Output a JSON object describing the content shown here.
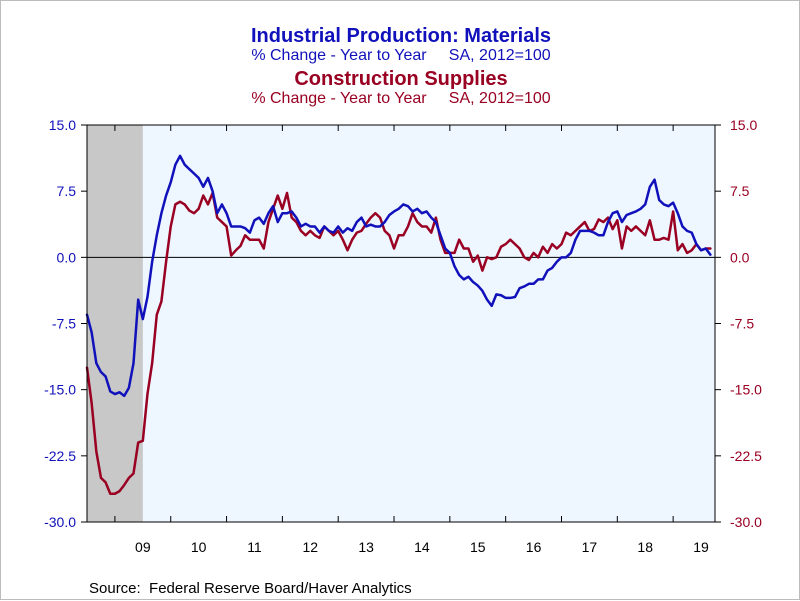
{
  "chart_data": {
    "type": "line",
    "titles": [
      {
        "text": "Industrial Production: Materials",
        "color": "#1111bb"
      },
      {
        "text": "% Change - Year to Year     SA, 2012=100",
        "color": "#1111bb"
      },
      {
        "text": "Construction Supplies",
        "color": "#990022"
      },
      {
        "text": "% Change - Year to Year     SA, 2012=100",
        "color": "#990022"
      }
    ],
    "source": "Source:  Federal Reserve Board/Haver Analytics",
    "x_range": [
      2008.5,
      2019.75
    ],
    "x_ticks": [
      {
        "label": "09",
        "value": 2009.5
      },
      {
        "label": "10",
        "value": 2010.5
      },
      {
        "label": "11",
        "value": 2011.5
      },
      {
        "label": "12",
        "value": 2012.5
      },
      {
        "label": "13",
        "value": 2013.5
      },
      {
        "label": "14",
        "value": 2014.5
      },
      {
        "label": "15",
        "value": 2015.5
      },
      {
        "label": "16",
        "value": 2016.5
      },
      {
        "label": "17",
        "value": 2017.5
      },
      {
        "label": "18",
        "value": 2018.5
      },
      {
        "label": "19",
        "value": 2019.5
      }
    ],
    "year_boundaries": [
      2009,
      2010,
      2011,
      2012,
      2013,
      2014,
      2015,
      2016,
      2017,
      2018,
      2019
    ],
    "recession_shading": [
      {
        "start": 2008.5,
        "end": 2009.5,
        "color": "#c8c8c8"
      }
    ],
    "y_range": [
      -30,
      15
    ],
    "y_ticks_left": [
      "15.0",
      "7.5",
      "0.0",
      "-7.5",
      "-15.0",
      "-22.5",
      "-30.0"
    ],
    "y_ticks_right": [
      "15.0",
      "7.5",
      "0.0",
      "-7.5",
      "-15.0",
      "-22.5",
      "-30.0"
    ],
    "y_tick_values": [
      15,
      7.5,
      0,
      -7.5,
      -15,
      -22.5,
      -30
    ],
    "zero_line": true,
    "grid": false,
    "plot_background": "#eef6ff",
    "left_axis_color": "#1111bb",
    "right_axis_color": "#990022",
    "series": [
      {
        "name": "Industrial Production: Materials",
        "color": "#1111bb",
        "points": [
          [
            2008.5,
            -6.5
          ],
          [
            2008.583,
            -8.5
          ],
          [
            2008.667,
            -12.0
          ],
          [
            2008.75,
            -13.0
          ],
          [
            2008.833,
            -13.5
          ],
          [
            2008.917,
            -15.2
          ],
          [
            2009.0,
            -15.5
          ],
          [
            2009.083,
            -15.3
          ],
          [
            2009.167,
            -15.7
          ],
          [
            2009.25,
            -14.8
          ],
          [
            2009.333,
            -12.0
          ],
          [
            2009.417,
            -4.8
          ],
          [
            2009.5,
            -7.0
          ],
          [
            2009.583,
            -4.5
          ],
          [
            2009.667,
            -0.5
          ],
          [
            2009.75,
            2.5
          ],
          [
            2009.833,
            5.0
          ],
          [
            2009.917,
            7.0
          ],
          [
            2010.0,
            8.5
          ],
          [
            2010.083,
            10.5
          ],
          [
            2010.167,
            11.5
          ],
          [
            2010.25,
            10.5
          ],
          [
            2010.333,
            10.0
          ],
          [
            2010.417,
            9.5
          ],
          [
            2010.5,
            9.0
          ],
          [
            2010.583,
            8.0
          ],
          [
            2010.667,
            9.0
          ],
          [
            2010.75,
            7.5
          ],
          [
            2010.833,
            5.0
          ],
          [
            2010.917,
            6.0
          ],
          [
            2011.0,
            5.0
          ],
          [
            2011.083,
            3.5
          ],
          [
            2011.167,
            3.5
          ],
          [
            2011.25,
            3.5
          ],
          [
            2011.333,
            3.3
          ],
          [
            2011.417,
            2.8
          ],
          [
            2011.5,
            4.2
          ],
          [
            2011.583,
            4.5
          ],
          [
            2011.667,
            3.8
          ],
          [
            2011.75,
            5.0
          ],
          [
            2011.833,
            5.8
          ],
          [
            2011.917,
            4.0
          ],
          [
            2012.0,
            5.0
          ],
          [
            2012.083,
            5.0
          ],
          [
            2012.167,
            5.2
          ],
          [
            2012.25,
            4.5
          ],
          [
            2012.333,
            3.5
          ],
          [
            2012.417,
            3.8
          ],
          [
            2012.5,
            3.5
          ],
          [
            2012.583,
            3.5
          ],
          [
            2012.667,
            2.8
          ],
          [
            2012.75,
            3.5
          ],
          [
            2012.833,
            3.0
          ],
          [
            2012.917,
            2.8
          ],
          [
            2013.0,
            3.5
          ],
          [
            2013.083,
            2.8
          ],
          [
            2013.167,
            3.3
          ],
          [
            2013.25,
            3.0
          ],
          [
            2013.333,
            4.0
          ],
          [
            2013.417,
            4.5
          ],
          [
            2013.5,
            3.5
          ],
          [
            2013.583,
            3.7
          ],
          [
            2013.667,
            3.5
          ],
          [
            2013.75,
            3.5
          ],
          [
            2013.833,
            4.0
          ],
          [
            2013.917,
            4.8
          ],
          [
            2014.0,
            5.2
          ],
          [
            2014.083,
            5.5
          ],
          [
            2014.167,
            6.0
          ],
          [
            2014.25,
            5.8
          ],
          [
            2014.333,
            5.2
          ],
          [
            2014.417,
            5.5
          ],
          [
            2014.5,
            5.0
          ],
          [
            2014.583,
            5.2
          ],
          [
            2014.667,
            4.5
          ],
          [
            2014.75,
            4.0
          ],
          [
            2014.833,
            2.5
          ],
          [
            2014.917,
            1.0
          ],
          [
            2015.0,
            0.5
          ],
          [
            2015.083,
            -1.0
          ],
          [
            2015.167,
            -2.0
          ],
          [
            2015.25,
            -2.5
          ],
          [
            2015.333,
            -2.2
          ],
          [
            2015.417,
            -2.8
          ],
          [
            2015.5,
            -3.2
          ],
          [
            2015.583,
            -3.8
          ],
          [
            2015.667,
            -4.8
          ],
          [
            2015.75,
            -5.5
          ],
          [
            2015.833,
            -4.2
          ],
          [
            2015.917,
            -4.3
          ],
          [
            2016.0,
            -4.6
          ],
          [
            2016.083,
            -4.6
          ],
          [
            2016.167,
            -4.5
          ],
          [
            2016.25,
            -3.5
          ],
          [
            2016.333,
            -3.3
          ],
          [
            2016.417,
            -3.0
          ],
          [
            2016.5,
            -3.0
          ],
          [
            2016.583,
            -2.5
          ],
          [
            2016.667,
            -2.5
          ],
          [
            2016.75,
            -1.5
          ],
          [
            2016.833,
            -1.2
          ],
          [
            2016.917,
            -0.5
          ],
          [
            2017.0,
            0.0
          ],
          [
            2017.083,
            0.0
          ],
          [
            2017.167,
            0.5
          ],
          [
            2017.25,
            2.0
          ],
          [
            2017.333,
            3.0
          ],
          [
            2017.417,
            3.0
          ],
          [
            2017.5,
            3.0
          ],
          [
            2017.583,
            2.8
          ],
          [
            2017.667,
            2.5
          ],
          [
            2017.75,
            2.5
          ],
          [
            2017.833,
            4.0
          ],
          [
            2017.917,
            5.0
          ],
          [
            2018.0,
            5.2
          ],
          [
            2018.083,
            4.0
          ],
          [
            2018.167,
            4.8
          ],
          [
            2018.25,
            5.0
          ],
          [
            2018.333,
            5.2
          ],
          [
            2018.417,
            5.5
          ],
          [
            2018.5,
            6.0
          ],
          [
            2018.583,
            8.0
          ],
          [
            2018.667,
            8.8
          ],
          [
            2018.75,
            6.5
          ],
          [
            2018.833,
            6.0
          ],
          [
            2018.917,
            5.8
          ],
          [
            2019.0,
            6.2
          ],
          [
            2019.083,
            5.0
          ],
          [
            2019.167,
            3.5
          ],
          [
            2019.25,
            3.0
          ],
          [
            2019.333,
            2.8
          ],
          [
            2019.417,
            1.5
          ],
          [
            2019.5,
            0.8
          ],
          [
            2019.583,
            1.0
          ],
          [
            2019.667,
            0.3
          ]
        ]
      },
      {
        "name": "Construction Supplies",
        "color": "#990022",
        "points": [
          [
            2008.5,
            -12.5
          ],
          [
            2008.583,
            -16.5
          ],
          [
            2008.667,
            -22.0
          ],
          [
            2008.75,
            -25.0
          ],
          [
            2008.833,
            -25.5
          ],
          [
            2008.917,
            -26.8
          ],
          [
            2009.0,
            -26.8
          ],
          [
            2009.083,
            -26.5
          ],
          [
            2009.167,
            -25.8
          ],
          [
            2009.25,
            -25.0
          ],
          [
            2009.333,
            -24.5
          ],
          [
            2009.417,
            -21.0
          ],
          [
            2009.5,
            -20.8
          ],
          [
            2009.583,
            -15.5
          ],
          [
            2009.667,
            -12.0
          ],
          [
            2009.75,
            -6.5
          ],
          [
            2009.833,
            -5.0
          ],
          [
            2009.917,
            -0.5
          ],
          [
            2010.0,
            3.5
          ],
          [
            2010.083,
            6.0
          ],
          [
            2010.167,
            6.3
          ],
          [
            2010.25,
            6.0
          ],
          [
            2010.333,
            5.3
          ],
          [
            2010.417,
            5.0
          ],
          [
            2010.5,
            5.5
          ],
          [
            2010.583,
            7.0
          ],
          [
            2010.667,
            6.0
          ],
          [
            2010.75,
            7.3
          ],
          [
            2010.833,
            4.5
          ],
          [
            2010.917,
            4.0
          ],
          [
            2011.0,
            3.5
          ],
          [
            2011.083,
            0.2
          ],
          [
            2011.167,
            0.8
          ],
          [
            2011.25,
            1.3
          ],
          [
            2011.333,
            2.5
          ],
          [
            2011.417,
            2.0
          ],
          [
            2011.5,
            2.0
          ],
          [
            2011.583,
            2.0
          ],
          [
            2011.667,
            1.0
          ],
          [
            2011.75,
            4.0
          ],
          [
            2011.833,
            5.5
          ],
          [
            2011.917,
            7.0
          ],
          [
            2012.0,
            5.5
          ],
          [
            2012.083,
            7.3
          ],
          [
            2012.167,
            4.5
          ],
          [
            2012.25,
            4.0
          ],
          [
            2012.333,
            3.0
          ],
          [
            2012.417,
            2.5
          ],
          [
            2012.5,
            3.0
          ],
          [
            2012.583,
            2.5
          ],
          [
            2012.667,
            2.2
          ],
          [
            2012.75,
            3.5
          ],
          [
            2012.833,
            3.0
          ],
          [
            2012.917,
            2.5
          ],
          [
            2013.0,
            3.0
          ],
          [
            2013.083,
            2.0
          ],
          [
            2013.167,
            0.8
          ],
          [
            2013.25,
            2.0
          ],
          [
            2013.333,
            2.8
          ],
          [
            2013.417,
            3.0
          ],
          [
            2013.5,
            3.8
          ],
          [
            2013.583,
            4.5
          ],
          [
            2013.667,
            5.0
          ],
          [
            2013.75,
            4.5
          ],
          [
            2013.833,
            3.0
          ],
          [
            2013.917,
            2.5
          ],
          [
            2014.0,
            1.0
          ],
          [
            2014.083,
            2.5
          ],
          [
            2014.167,
            2.5
          ],
          [
            2014.25,
            3.5
          ],
          [
            2014.333,
            5.0
          ],
          [
            2014.417,
            4.0
          ],
          [
            2014.5,
            3.5
          ],
          [
            2014.583,
            3.5
          ],
          [
            2014.667,
            2.8
          ],
          [
            2014.75,
            4.5
          ],
          [
            2014.833,
            2.0
          ],
          [
            2014.917,
            0.5
          ],
          [
            2015.0,
            0.5
          ],
          [
            2015.083,
            0.5
          ],
          [
            2015.167,
            2.0
          ],
          [
            2015.25,
            1.0
          ],
          [
            2015.333,
            1.0
          ],
          [
            2015.417,
            -0.5
          ],
          [
            2015.5,
            0.2
          ],
          [
            2015.583,
            -1.5
          ],
          [
            2015.667,
            0.0
          ],
          [
            2015.75,
            -0.2
          ],
          [
            2015.833,
            0.0
          ],
          [
            2015.917,
            1.2
          ],
          [
            2016.0,
            1.5
          ],
          [
            2016.083,
            2.0
          ],
          [
            2016.167,
            1.5
          ],
          [
            2016.25,
            1.0
          ],
          [
            2016.333,
            0.0
          ],
          [
            2016.417,
            -0.3
          ],
          [
            2016.5,
            0.5
          ],
          [
            2016.583,
            0.0
          ],
          [
            2016.667,
            1.2
          ],
          [
            2016.75,
            0.5
          ],
          [
            2016.833,
            1.5
          ],
          [
            2016.917,
            1.0
          ],
          [
            2017.0,
            1.5
          ],
          [
            2017.083,
            2.8
          ],
          [
            2017.167,
            2.5
          ],
          [
            2017.25,
            3.0
          ],
          [
            2017.333,
            3.5
          ],
          [
            2017.417,
            4.0
          ],
          [
            2017.5,
            3.0
          ],
          [
            2017.583,
            3.2
          ],
          [
            2017.667,
            4.3
          ],
          [
            2017.75,
            4.0
          ],
          [
            2017.833,
            4.5
          ],
          [
            2017.917,
            3.2
          ],
          [
            2018.0,
            4.2
          ],
          [
            2018.083,
            1.0
          ],
          [
            2018.167,
            3.5
          ],
          [
            2018.25,
            3.0
          ],
          [
            2018.333,
            3.5
          ],
          [
            2018.417,
            3.0
          ],
          [
            2018.5,
            2.5
          ],
          [
            2018.583,
            4.2
          ],
          [
            2018.667,
            2.0
          ],
          [
            2018.75,
            2.0
          ],
          [
            2018.833,
            2.2
          ],
          [
            2018.917,
            2.0
          ],
          [
            2019.0,
            5.2
          ],
          [
            2019.083,
            0.8
          ],
          [
            2019.167,
            1.5
          ],
          [
            2019.25,
            0.5
          ],
          [
            2019.333,
            0.8
          ],
          [
            2019.417,
            1.5
          ],
          [
            2019.5,
            0.8
          ],
          [
            2019.583,
            1.0
          ],
          [
            2019.667,
            1.0
          ]
        ]
      }
    ]
  }
}
